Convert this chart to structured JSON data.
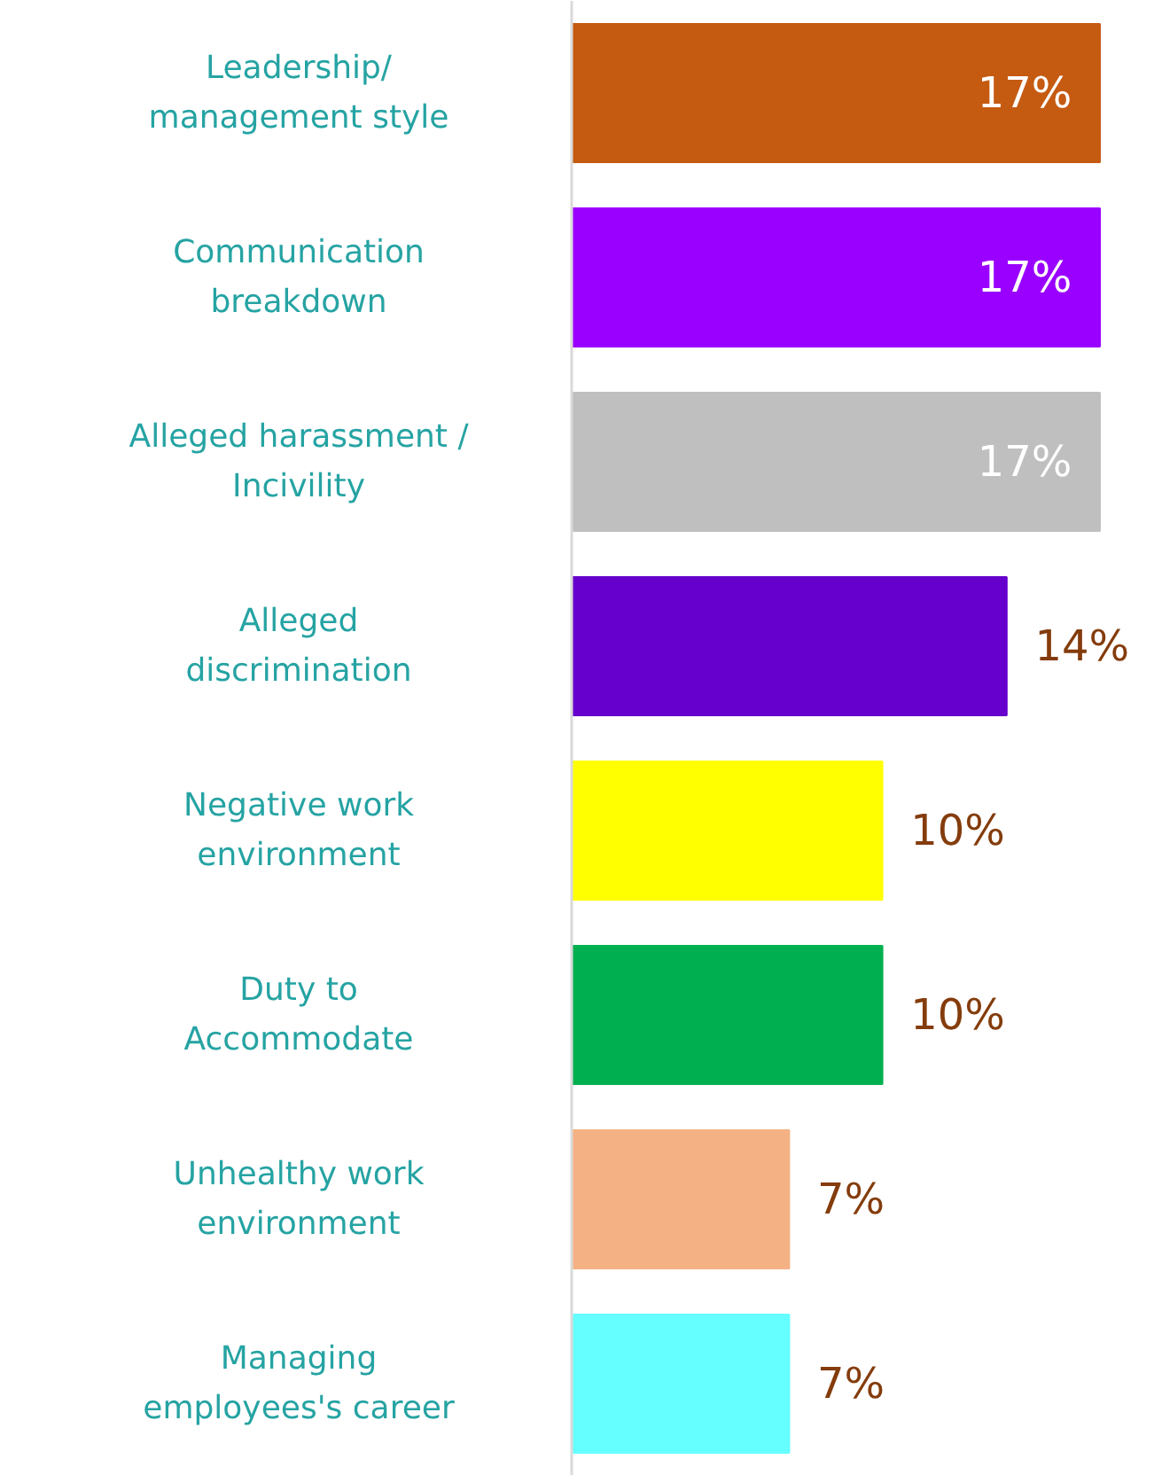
{
  "chart_data": {
    "type": "bar",
    "orientation": "horizontal",
    "categories": [
      "Leadership/\nmanagement style",
      "Communication\nbreakdown",
      "Alleged harassment /\nIncivility",
      "Alleged\ndiscrimination",
      "Negative work\nenvironment",
      "Duty to\nAccommodate",
      "Unhealthy work\nenvironment",
      "Managing\nemployees's career"
    ],
    "values": [
      17,
      17,
      17,
      14,
      10,
      10,
      7,
      7
    ],
    "colors": [
      "#c55a11",
      "#9900ff",
      "#bfbfbf",
      "#6600cc",
      "#ffff00",
      "#00b050",
      "#f4b183",
      "#66ffff"
    ],
    "value_labels": [
      "17%",
      "17%",
      "17%",
      "14%",
      "10%",
      "10%",
      "7%",
      "7%"
    ],
    "grid": false
  }
}
